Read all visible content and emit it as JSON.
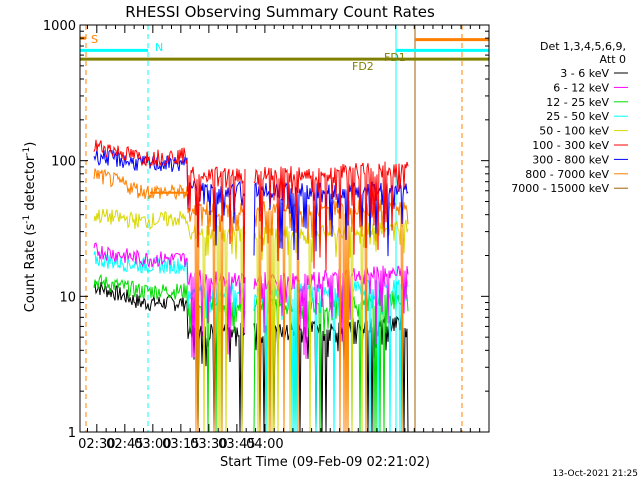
{
  "chart_data": {
    "type": "line",
    "title": "RHESSI Observing Summary Count Rates",
    "xlabel": "Start Time (09-Feb-09 02:21:02)",
    "ylabel_main": "Count Rate (s",
    "ylabel_sup1": "-1",
    "ylabel_mid": " detector",
    "ylabel_sup2": "-1",
    "ylabel_end": ")",
    "x_range_minutes": [
      0,
      219
    ],
    "x_tick_minutes": [
      9,
      24,
      39,
      54,
      69,
      84,
      99
    ],
    "x_tick_labels": [
      "02:30",
      "02:45",
      "03:00",
      "03:15",
      "03:30",
      "03:45",
      "04:00"
    ],
    "y_scale": "log",
    "ylim": [
      1,
      1000
    ],
    "y_ticks": [
      1,
      10,
      100,
      1000
    ],
    "y_tick_labels": [
      "1",
      "10",
      "100",
      "1000"
    ],
    "legend_header": [
      "Det 1,3,4,5,6,9,",
      "Att 0"
    ],
    "legend_placement": "right",
    "series": [
      {
        "name": "3 - 6 keV",
        "color": "#000000",
        "pre": [
          12,
          9,
          9
        ],
        "post": [
          5.5,
          5.8,
          6.5
        ],
        "dip": 0.55
      },
      {
        "name": "6 - 12 keV",
        "color": "#ff00ff",
        "pre": [
          22,
          19,
          19
        ],
        "post": [
          14,
          13,
          15.5
        ],
        "dip": 0.25
      },
      {
        "name": "12 - 25 keV",
        "color": "#00dd00",
        "pre": [
          13,
          11,
          11
        ],
        "post": [
          9,
          8.5,
          10
        ],
        "dip": 0.5
      },
      {
        "name": "25 - 50 keV",
        "color": "#00ffff",
        "pre": [
          19,
          17,
          17
        ],
        "post": [
          11,
          11,
          12
        ],
        "dip": 0.6
      },
      {
        "name": "50 - 100 keV",
        "color": "#d8d800",
        "pre": [
          40,
          36,
          38
        ],
        "post": [
          30,
          29,
          33
        ],
        "dip": 0.6
      },
      {
        "name": "100 - 300 keV",
        "color": "#ff0000",
        "pre": [
          130,
          105,
          110
        ],
        "post": [
          80,
          80,
          88
        ],
        "dip": 0.15
      },
      {
        "name": "300 - 800 keV",
        "color": "#0000ff",
        "pre": [
          110,
          95,
          95
        ],
        "post": [
          63,
          60,
          62
        ],
        "dip": 0.3
      },
      {
        "name": "800 - 7000 keV",
        "color": "#ff8000",
        "pre": [
          80,
          60,
          58
        ],
        "post": [
          44,
          44,
          46
        ],
        "dip": 0.55
      },
      {
        "name": "7000 - 15000 keV",
        "color": "#a06000",
        "pre": [],
        "post": [],
        "dip": 0
      }
    ],
    "flags": {
      "S": {
        "label": "S",
        "color": "#ff8000",
        "y": 800
      },
      "N": {
        "label": "N",
        "color": "#00ffff",
        "y": 650
      },
      "FD1": {
        "label": "FD1",
        "color": "#00ffff",
        "y": 650
      },
      "FD2": {
        "label": "FD2",
        "color": "#808000",
        "y": 560
      },
      "ORANGE_HI": {
        "color": "#ff8000",
        "y": 780
      }
    },
    "grid": false
  },
  "footer": {
    "date": "13-Oct-2021 21:25"
  }
}
